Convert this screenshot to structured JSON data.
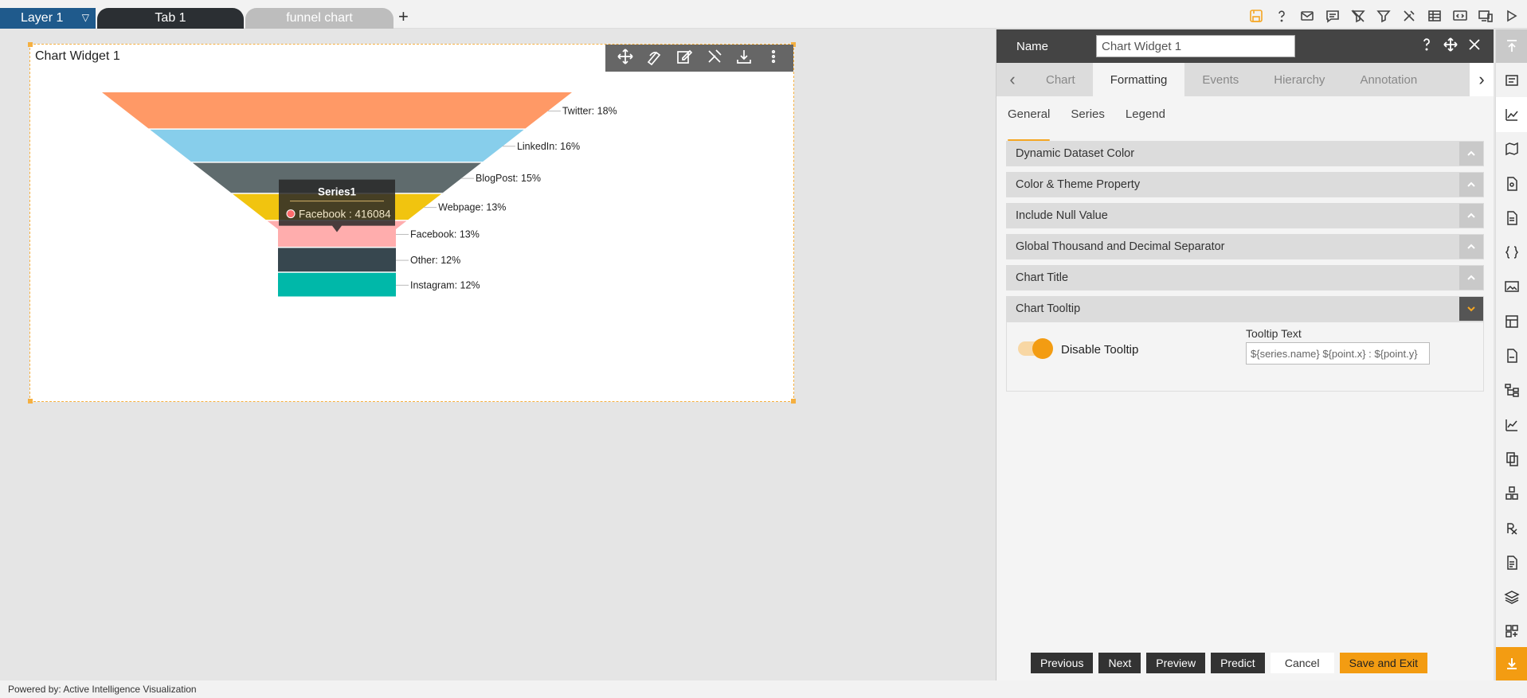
{
  "topbar": {
    "layer_label": "Layer 1",
    "tabs": [
      {
        "label": "Tab 1"
      },
      {
        "label": "funnel chart"
      }
    ],
    "add_tab": "+"
  },
  "widget": {
    "title": "Chart Widget 1",
    "toolbar_icons": [
      "move-icon",
      "draw-icon",
      "edit-icon",
      "tools-icon",
      "download-icon",
      "more-icon"
    ]
  },
  "chart_data": {
    "type": "funnel",
    "series_name": "Series1",
    "categories": [
      "Twitter",
      "LinkedIn",
      "BlogPost",
      "Webpage",
      "Facebook",
      "Other",
      "Instagram"
    ],
    "percent_labels": [
      "Twitter: 18%",
      "LinkedIn: 16%",
      "BlogPost: 15%",
      "Webpage: 13%",
      "Facebook: 13%",
      "Other: 12%",
      "Instagram: 12%"
    ],
    "percents": [
      18,
      16,
      15,
      13,
      13,
      12,
      12
    ],
    "colors": [
      "#ff9966",
      "#87ceeb",
      "#5f6b6d",
      "#f1c40f",
      "#ffadad",
      "#37474f",
      "#00b8a9"
    ],
    "tooltip": {
      "title": "Series1",
      "text": "Facebook : 416084",
      "category": "Facebook",
      "value": 416084
    }
  },
  "panel": {
    "name_label": "Name",
    "name_value": "Chart Widget 1",
    "tabs": [
      "Chart",
      "Formatting",
      "Events",
      "Hierarchy",
      "Annotation"
    ],
    "active_tab": "Formatting",
    "sub_tabs": [
      "General",
      "Series",
      "Legend"
    ],
    "sections": [
      "Dynamic Dataset Color",
      "Color & Theme Property",
      "Include Null Value",
      "Global Thousand and Decimal Separator",
      "Chart Title",
      "Chart Tooltip"
    ],
    "tooltip_section": {
      "toggle_label": "Disable Tooltip",
      "tooltip_text_label": "Tooltip Text",
      "tooltip_text_value": "${series.name} ${point.x} : ${point.y}"
    },
    "buttons": [
      "Previous",
      "Next",
      "Preview",
      "Predict",
      "Cancel",
      "Save and Exit"
    ]
  },
  "status": {
    "text": "Powered by: Active Intelligence Visualization"
  },
  "colors": {
    "accent": "#f39c12",
    "layer_tab": "#1f5a8c"
  }
}
